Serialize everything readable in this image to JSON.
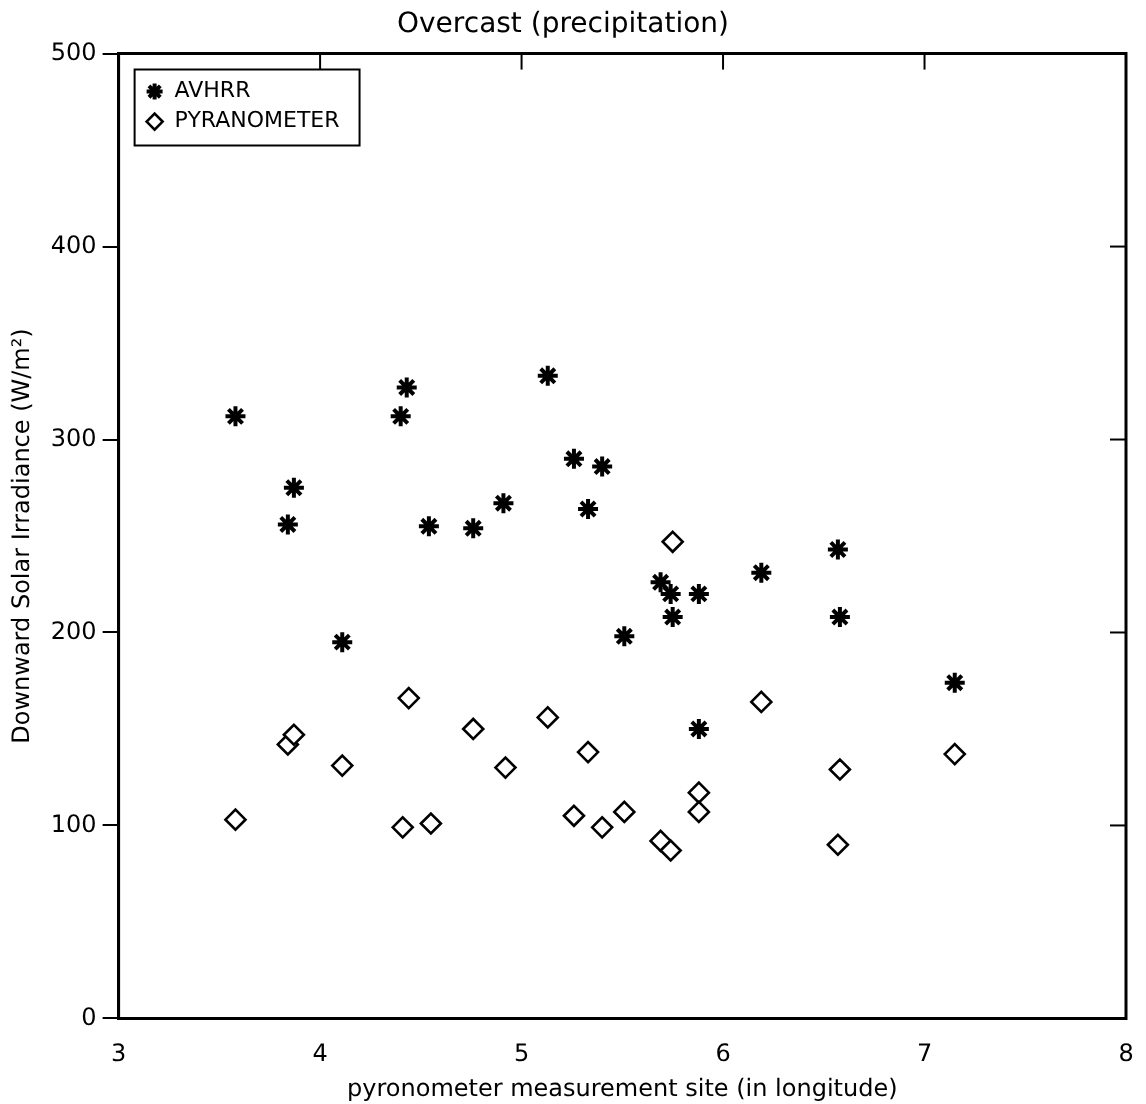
{
  "chart_data": {
    "type": "scatter",
    "title": "Overcast (precipitation)",
    "xlabel": "pyronometer measurement site (in longitude)",
    "ylabel": "Downward Solar Irradiance (W/m²)",
    "xlim": [
      3,
      8
    ],
    "xticks": [
      3,
      4,
      5,
      6,
      7,
      8
    ],
    "ylim": [
      0,
      500
    ],
    "yticks": [
      0,
      100,
      200,
      300,
      400,
      500
    ],
    "grid": false,
    "legend": "top left",
    "series": [
      {
        "name": "AVHRR",
        "color": "#000000",
        "marker": "cross",
        "x": [
          3.58,
          3.84,
          3.87,
          4.11,
          4.4,
          4.43,
          4.54,
          4.76,
          4.91,
          5.13,
          5.26,
          5.33,
          5.4,
          5.51,
          5.69,
          5.74,
          5.88,
          5.75,
          5.88,
          6.19,
          6.57,
          6.58,
          7.15
        ],
        "values": [
          312,
          256,
          275,
          195,
          312,
          327,
          255,
          254,
          267,
          333,
          290,
          264,
          286,
          198,
          226,
          220,
          220,
          208,
          150,
          231,
          243,
          208,
          174
        ]
      },
      {
        "name": "PYRANOMETER",
        "color": "#000000",
        "marker": "diamond",
        "x": [
          3.58,
          3.84,
          3.87,
          4.11,
          4.44,
          4.41,
          4.55,
          4.76,
          4.92,
          5.13,
          5.26,
          5.33,
          5.4,
          5.51,
          5.75,
          5.69,
          5.74,
          5.88,
          5.88,
          6.19,
          6.58,
          6.57,
          7.15
        ],
        "values": [
          103,
          142,
          147,
          131,
          166,
          99,
          101,
          150,
          130,
          156,
          105,
          138,
          99,
          107,
          247,
          92,
          87,
          117,
          107,
          164,
          129,
          90,
          137
        ]
      }
    ]
  }
}
